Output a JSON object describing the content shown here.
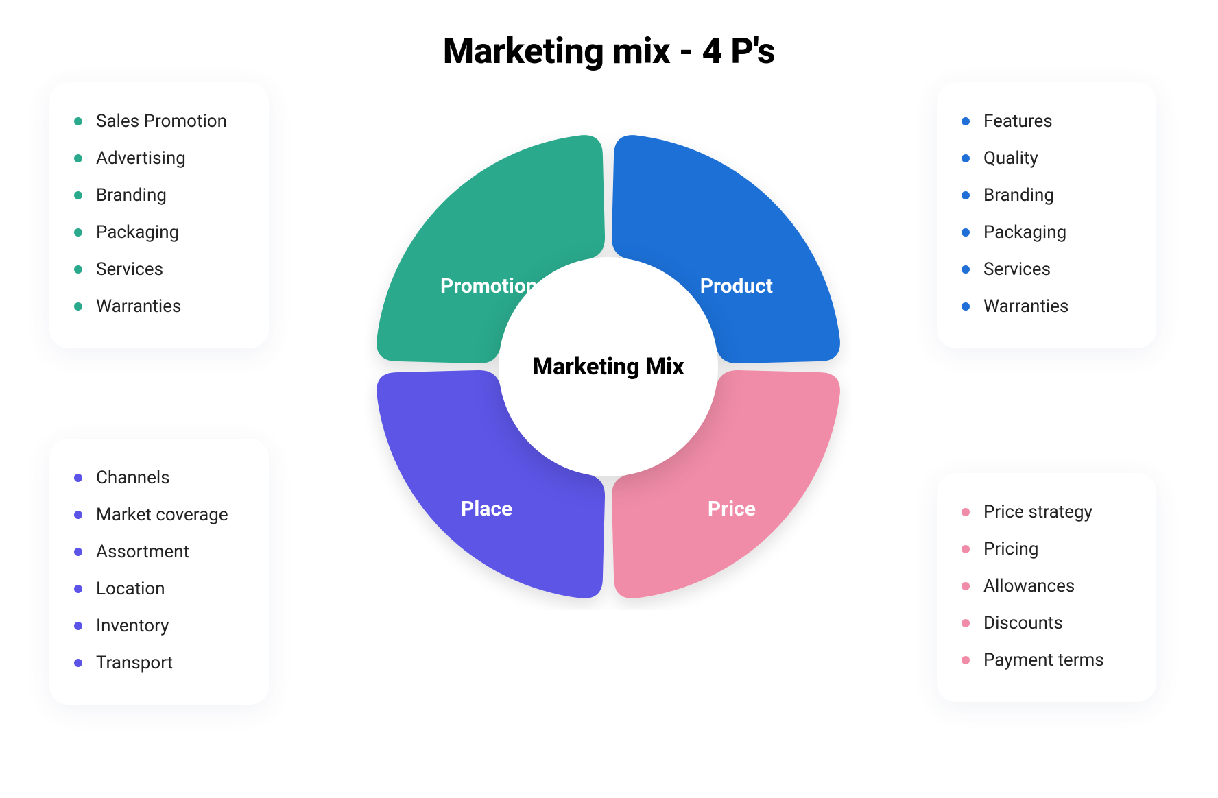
{
  "title": "Marketing mix - 4 P's",
  "center_label": "Marketing Mix",
  "background_color": "#ffffff",
  "shadow_color": "rgba(0,0,0,0.12)",
  "donut": {
    "outer_radius": 340,
    "inner_radius": 160,
    "gap_deg": 3,
    "corner_radius": 30,
    "center_circle_color": "#ffffff"
  },
  "segments": {
    "promotion": {
      "label": "Promotion",
      "color": "#2aa98c",
      "start_deg": 181.5,
      "end_deg": 268.5,
      "bullets": [
        "Sales Promotion",
        "Advertising",
        "Branding",
        "Packaging",
        "Services",
        "Warranties"
      ],
      "bullet_color": "#2aa98c"
    },
    "product": {
      "label": "Product",
      "color": "#1f6fd6",
      "start_deg": 271.5,
      "end_deg": 358.5,
      "bullets": [
        "Features",
        "Quality",
        "Branding",
        "Packaging",
        "Services",
        "Warranties"
      ],
      "bullet_color": "#1f6fd6"
    },
    "price": {
      "label": "Price",
      "color": "#f08ca7",
      "start_deg": 1.5,
      "end_deg": 88.5,
      "bullets": [
        "Price strategy",
        "Pricing",
        "Allowances",
        "Discounts",
        "Payment terms"
      ],
      "bullet_color": "#f08ca7"
    },
    "place": {
      "label": "Place",
      "color": "#5b54e6",
      "start_deg": 91.5,
      "end_deg": 178.5,
      "bullets": [
        "Channels",
        "Market coverage",
        "Assortment",
        "Location",
        "Inventory",
        "Transport"
      ],
      "bullet_color": "#5b54e6"
    }
  },
  "typography": {
    "title_fontsize": 52,
    "title_weight": 800,
    "center_fontsize": 34,
    "segment_label_fontsize": 30,
    "bullet_fontsize": 26,
    "text_color": "#222222"
  }
}
